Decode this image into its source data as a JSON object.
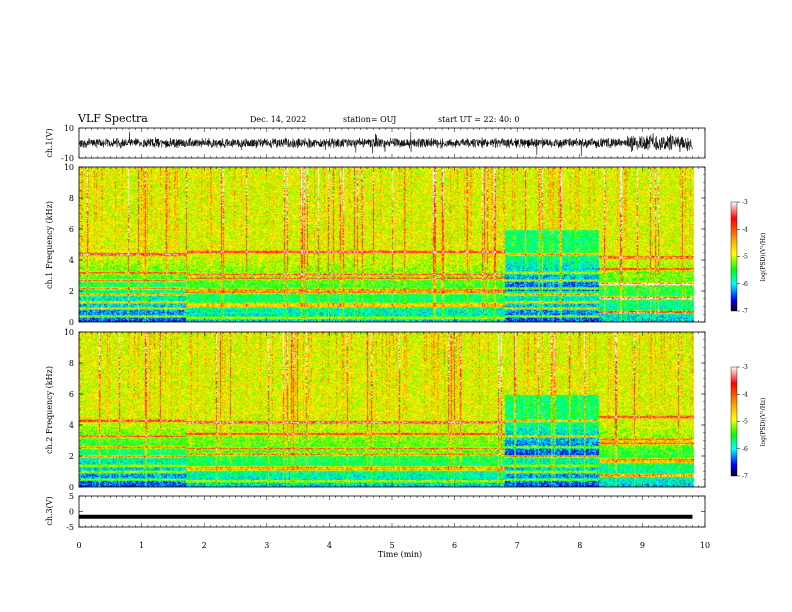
{
  "header": {
    "title": "VLF Spectra",
    "date": "Dec. 14, 2022",
    "station": "station= OUJ",
    "start": "start  UT =   22: 40: 0"
  },
  "colorbar": {
    "ticks": [
      "-3",
      "-4",
      "-5",
      "-6",
      "-7"
    ],
    "label": "log(PSD)(V²/Hz)",
    "colors": [
      "#ffffff",
      "#ff0000",
      "#ffa500",
      "#ffff00",
      "#00ff00",
      "#00ffff",
      "#0000ff",
      "#000000"
    ]
  },
  "chart_data": [
    {
      "type": "line",
      "panel": "ch1-waveform",
      "ylabel": "ch.1(V)",
      "ylim": [
        -10,
        10
      ],
      "ytick_labels": [
        "10",
        "-10"
      ],
      "xlim": [
        0,
        10
      ],
      "description_values": {
        "baseline_mean": 0,
        "typical_amplitude": 3,
        "burst_interval_min": [
          8.8,
          9.8
        ]
      }
    },
    {
      "type": "heatmap",
      "panel": "ch1-spectrogram",
      "ylabel": "ch.1 Frequency (kHz)",
      "ylim": [
        0,
        10
      ],
      "ytick_labels": [
        "0",
        "2",
        "4",
        "6",
        "8",
        "10"
      ],
      "xlim": [
        0,
        10
      ],
      "zrange": [
        -7,
        -3
      ],
      "bands_khz": [
        0.4,
        0.9,
        1.3,
        1.8,
        2.2,
        2.7,
        3.2,
        4.4
      ],
      "band_shift_times_min": [
        1.7,
        6.8,
        8.3
      ],
      "quiet_intervals_min": [
        [
          6.8,
          8.3
        ]
      ]
    },
    {
      "type": "heatmap",
      "panel": "ch2-spectrogram",
      "ylabel": "ch.2 Frequency (kHz)",
      "ylim": [
        0,
        10
      ],
      "ytick_labels": [
        "0",
        "2",
        "4",
        "6",
        "8",
        "10"
      ],
      "xlim": [
        0,
        10
      ],
      "zrange": [
        -7,
        -3
      ],
      "bands_khz": [
        0.5,
        1.0,
        1.4,
        2.0,
        2.6,
        3.3,
        4.3
      ],
      "band_shift_times_min": [
        1.7,
        6.8,
        8.3
      ],
      "quiet_intervals_min": [
        [
          6.8,
          8.3
        ]
      ]
    },
    {
      "type": "line",
      "panel": "ch3-waveform",
      "ylabel": "ch.3(V)",
      "ylim": [
        -5,
        5
      ],
      "ytick_labels": [
        "5",
        "0",
        "-5"
      ],
      "x": [
        0,
        9.8
      ],
      "y": [
        -1.7,
        -1.7
      ],
      "xlabel": "Time (min)",
      "xlim": [
        0,
        10
      ],
      "xtick_labels": [
        "0",
        "1",
        "2",
        "3",
        "4",
        "5",
        "6",
        "7",
        "8",
        "9",
        "10"
      ]
    }
  ]
}
